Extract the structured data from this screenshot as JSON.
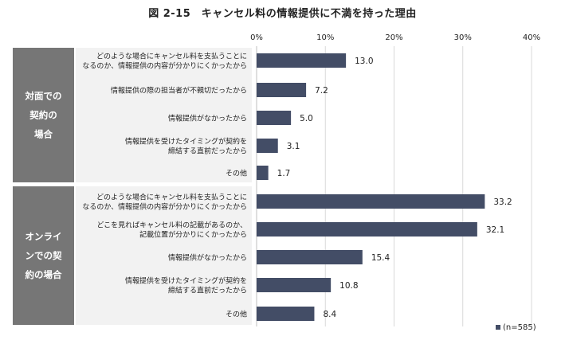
{
  "title": "図 2-15　キャンセル料の情報提供に不満を持った理由",
  "chart_data": {
    "type": "bar",
    "orientation": "horizontal",
    "title": "図 2-15　キャンセル料の情報提供に不満を持った理由",
    "xlim": [
      0,
      40
    ],
    "x_ticks": [
      "0%",
      "10%",
      "20%",
      "30%",
      "40%"
    ],
    "grid": true,
    "legend": "bottom-right",
    "legend_label": "(n=585)",
    "bar_color": "#434d66",
    "groups": [
      {
        "label_lines": [
          "対面での",
          "契約の",
          "場合"
        ],
        "items": [
          {
            "label_lines": [
              "どのような場合にキャンセル料を支払うことに",
              "なるのか、情報提供の内容が分かりにくかったから"
            ],
            "value": 13.0,
            "value_label": "13.0"
          },
          {
            "label_lines": [
              "情報提供の際の担当者が不親切だったから"
            ],
            "value": 7.2,
            "value_label": "7.2"
          },
          {
            "label_lines": [
              "情報提供がなかったから"
            ],
            "value": 5.0,
            "value_label": "5.0"
          },
          {
            "label_lines": [
              "情報提供を受けたタイミングが契約を",
              "締結する直前だったから"
            ],
            "value": 3.1,
            "value_label": "3.1"
          },
          {
            "label_lines": [
              "その他"
            ],
            "value": 1.7,
            "value_label": "1.7"
          }
        ]
      },
      {
        "label_lines": [
          "オンライ",
          "ンでの契",
          "約の場合"
        ],
        "items": [
          {
            "label_lines": [
              "どのような場合にキャンセル料を支払うことに",
              "なるのか、情報提供の内容が分かりにくかったから"
            ],
            "value": 33.2,
            "value_label": "33.2"
          },
          {
            "label_lines": [
              "どこを見ればキャンセル料の記載があるのか、",
              "記載位置が分かりにくかったから"
            ],
            "value": 32.1,
            "value_label": "32.1"
          },
          {
            "label_lines": [
              "情報提供がなかったから"
            ],
            "value": 15.4,
            "value_label": "15.4"
          },
          {
            "label_lines": [
              "情報提供を受けたタイミングが契約を",
              "締結する直前だったから"
            ],
            "value": 10.8,
            "value_label": "10.8"
          },
          {
            "label_lines": [
              "その他"
            ],
            "value": 8.4,
            "value_label": "8.4"
          }
        ]
      }
    ]
  }
}
